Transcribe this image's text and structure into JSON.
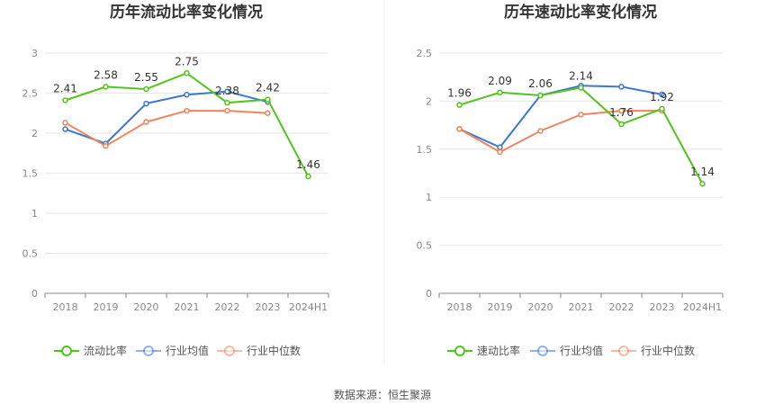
{
  "chart_data": [
    {
      "type": "line",
      "title": "历年流动比率变化情况",
      "categories": [
        "2018",
        "2019",
        "2020",
        "2021",
        "2022",
        "2023",
        "2024H1"
      ],
      "ylim": [
        0,
        3
      ],
      "yticks": [
        "0",
        "0.5",
        "1",
        "1.5",
        "2",
        "2.5",
        "3"
      ],
      "grid": true,
      "legend": "bottom",
      "series": [
        {
          "name": "流动比率",
          "color": "#52c41a",
          "values": [
            2.41,
            2.58,
            2.55,
            2.75,
            2.38,
            2.42,
            1.46
          ],
          "labels": [
            "2.41",
            "2.58",
            "2.55",
            "2.75",
            "2.38",
            "2.42",
            "1.46"
          ]
        },
        {
          "name": "行业均值",
          "color": "#3b76d6",
          "values": [
            2.05,
            1.87,
            2.37,
            2.48,
            2.52,
            2.39,
            null
          ]
        },
        {
          "name": "行业中位数",
          "color": "#f0845c",
          "values": [
            2.13,
            1.84,
            2.14,
            2.28,
            2.28,
            2.25,
            null
          ]
        }
      ]
    },
    {
      "type": "line",
      "title": "历年速动比率变化情况",
      "categories": [
        "2018",
        "2019",
        "2020",
        "2021",
        "2022",
        "2023",
        "2024H1"
      ],
      "ylim": [
        0,
        2.5
      ],
      "yticks": [
        "0",
        "0.5",
        "1",
        "1.5",
        "2",
        "2.5"
      ],
      "grid": true,
      "legend": "bottom",
      "series": [
        {
          "name": "速动比率",
          "color": "#52c41a",
          "values": [
            1.96,
            2.09,
            2.06,
            2.14,
            1.76,
            1.92,
            1.14
          ],
          "labels": [
            "1.96",
            "2.09",
            "2.06",
            "2.14",
            "1.76",
            "1.92",
            "1.14"
          ]
        },
        {
          "name": "行业均值",
          "color": "#3b76d6",
          "values": [
            1.71,
            1.52,
            2.06,
            2.16,
            2.15,
            2.07,
            null
          ]
        },
        {
          "name": "行业中位数",
          "color": "#f0845c",
          "values": [
            1.71,
            1.47,
            1.69,
            1.86,
            1.9,
            1.9,
            null
          ]
        }
      ]
    }
  ],
  "source": "数据来源：恒生聚源"
}
